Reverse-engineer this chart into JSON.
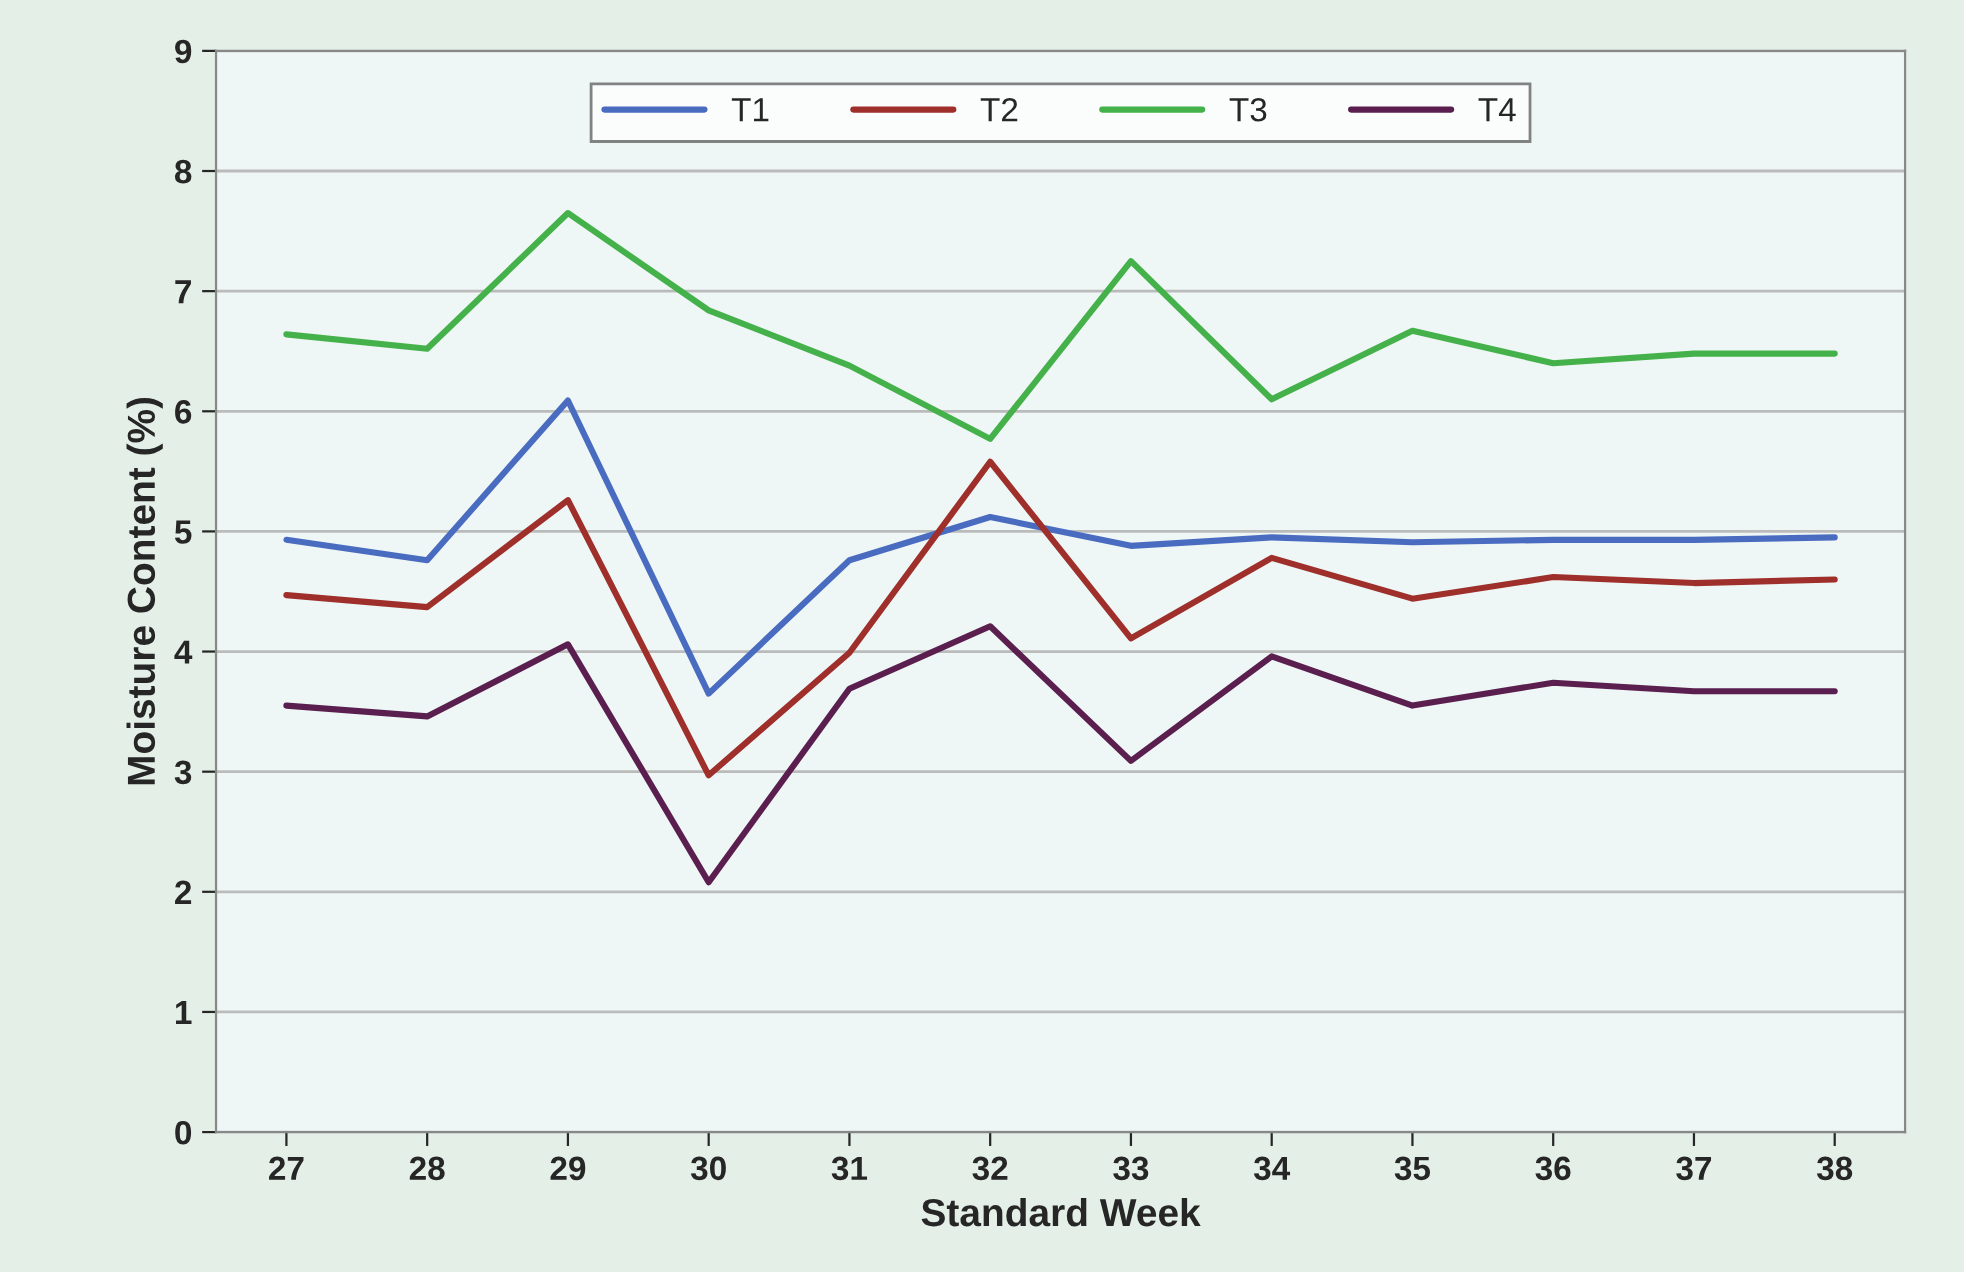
{
  "chart_data": {
    "type": "line",
    "xlabel": "Standard Week",
    "ylabel": "Moisture Content (%)",
    "categories": [
      "27",
      "28",
      "29",
      "30",
      "31",
      "32",
      "33",
      "34",
      "35",
      "36",
      "37",
      "38"
    ],
    "series": [
      {
        "name": "T1",
        "color": "#4a6cc0",
        "values": [
          4.93,
          4.76,
          6.09,
          3.65,
          4.76,
          5.12,
          4.88,
          4.95,
          4.91,
          4.93,
          4.93,
          4.95
        ]
      },
      {
        "name": "T2",
        "color": "#9e2f2a",
        "values": [
          4.47,
          4.37,
          5.26,
          2.97,
          3.99,
          5.58,
          4.11,
          4.78,
          4.44,
          4.62,
          4.57,
          4.6
        ]
      },
      {
        "name": "T3",
        "color": "#45b14a",
        "values": [
          6.64,
          6.52,
          7.65,
          6.84,
          6.38,
          5.77,
          7.25,
          6.1,
          6.67,
          6.4,
          6.48,
          6.48
        ]
      },
      {
        "name": "T4",
        "color": "#5a1f4f",
        "values": [
          3.55,
          3.46,
          4.06,
          2.08,
          3.69,
          4.21,
          3.09,
          3.96,
          3.55,
          3.74,
          3.67,
          3.67
        ]
      }
    ],
    "ylim": [
      0,
      9
    ],
    "yticks": [
      0,
      1,
      2,
      3,
      4,
      5,
      6,
      7,
      8,
      9
    ],
    "grid": "y",
    "legend": "top",
    "line_style": "solid",
    "marker": "none"
  }
}
